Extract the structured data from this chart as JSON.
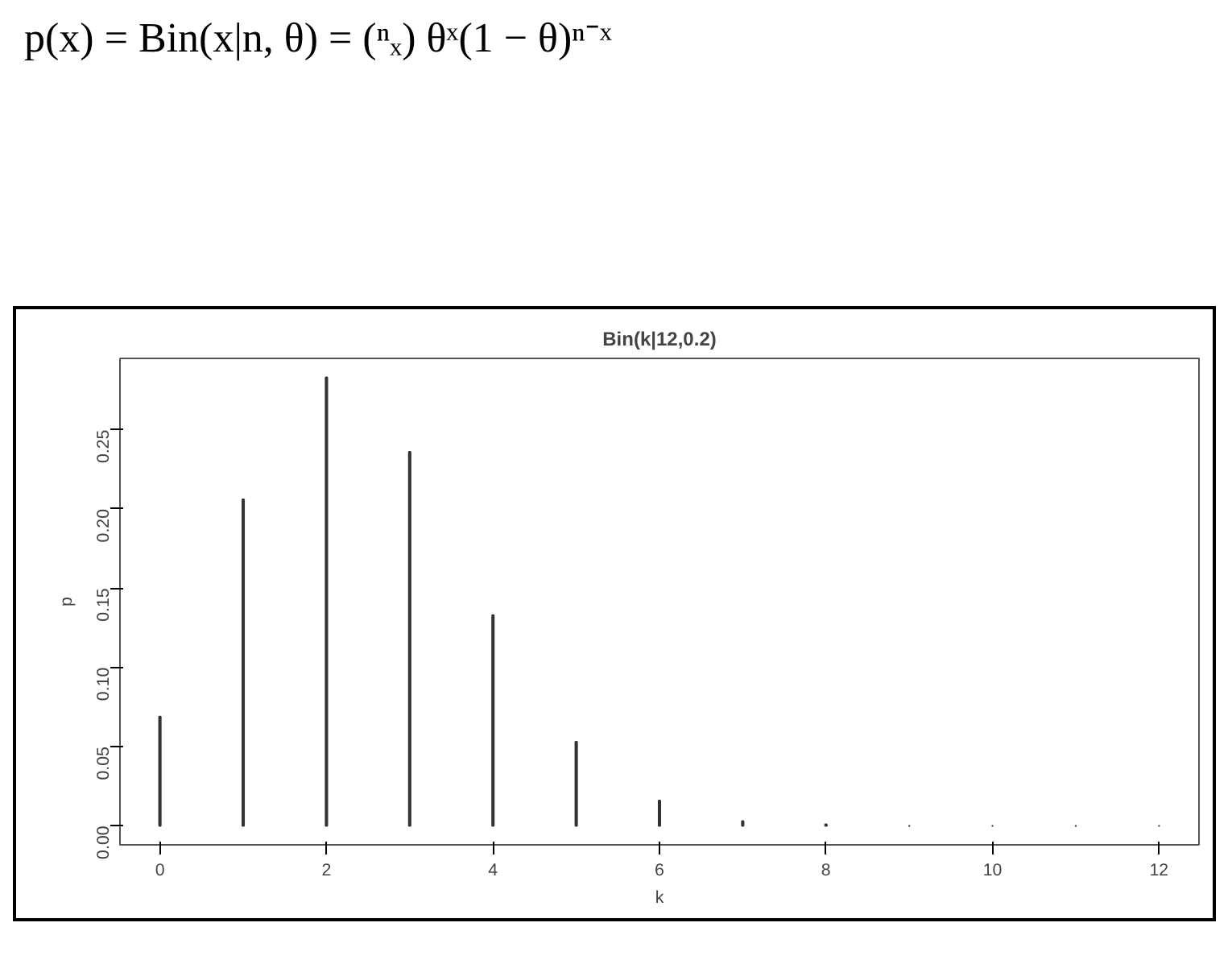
{
  "chart_data": {
    "type": "bar",
    "title": "Bin(k|12,0.2)",
    "xlabel": "k",
    "ylabel": "p",
    "annotations": [
      "p(x) = Bin(x|n, θ) = (ⁿₓ) θˣ(1 − θ)ⁿ⁻ˣ"
    ],
    "x": [
      0,
      1,
      2,
      3,
      4,
      5,
      6,
      7,
      8,
      9,
      10,
      11,
      12
    ],
    "values": [
      0.069,
      0.206,
      0.283,
      0.236,
      0.133,
      0.053,
      0.016,
      0.003,
      0.001,
      0,
      0,
      0,
      0
    ],
    "color": "#333333",
    "xlim": [
      -0.48,
      12.48
    ],
    "ylim": [
      -0.012,
      0.295
    ],
    "xticks": [
      0,
      2,
      4,
      6,
      8,
      10,
      12
    ],
    "yticks": [
      {
        "value": 0,
        "label": "0.00"
      },
      {
        "value": 0.05,
        "label": "0.05"
      },
      {
        "value": 0.1,
        "label": "0.10"
      },
      {
        "value": 0.15,
        "label": "0.15"
      },
      {
        "value": 0.2,
        "label": "0.20"
      },
      {
        "value": 0.25,
        "label": "0.25"
      }
    ],
    "grid": false
  }
}
